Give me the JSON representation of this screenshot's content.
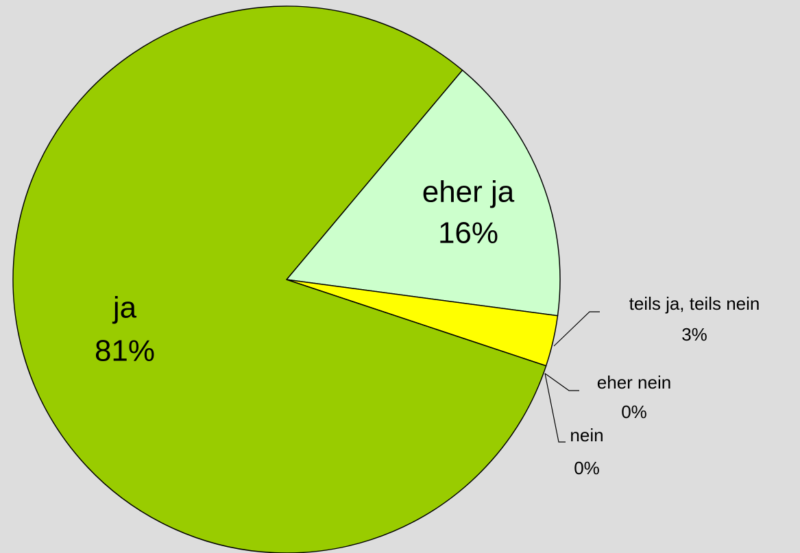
{
  "chart_data": {
    "type": "pie",
    "categories": [
      "eher ja",
      "teils ja, teils nein",
      "eher nein",
      "nein",
      "ja"
    ],
    "values": [
      16,
      3,
      0,
      0,
      81
    ],
    "value_labels": [
      "16%",
      "3%",
      "0%",
      "0%",
      "81%"
    ],
    "colors": [
      "#ccffcc",
      "#ffff00",
      "#ff9900",
      "#ff0000",
      "#99cc00"
    ]
  }
}
